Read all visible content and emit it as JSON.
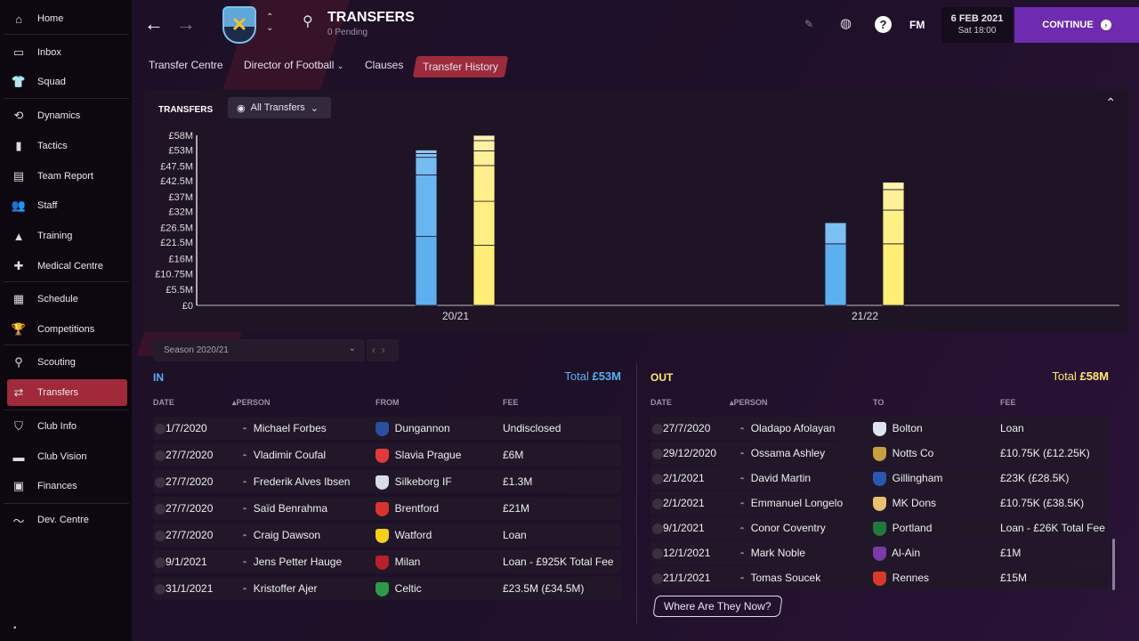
{
  "sidebar": {
    "items": [
      {
        "label": "Home",
        "icon": "home-icon"
      },
      {
        "label": "Inbox",
        "icon": "inbox-icon"
      },
      {
        "label": "Squad",
        "icon": "shirt-icon"
      },
      {
        "label": "Dynamics",
        "icon": "dynamics-icon"
      },
      {
        "label": "Tactics",
        "icon": "tactics-icon"
      },
      {
        "label": "Team Report",
        "icon": "clipboard-icon"
      },
      {
        "label": "Staff",
        "icon": "staff-icon"
      },
      {
        "label": "Training",
        "icon": "training-icon"
      },
      {
        "label": "Medical Centre",
        "icon": "medical-icon"
      },
      {
        "label": "Schedule",
        "icon": "calendar-icon"
      },
      {
        "label": "Competitions",
        "icon": "trophy-icon"
      },
      {
        "label": "Scouting",
        "icon": "search-icon"
      },
      {
        "label": "Transfers",
        "icon": "transfer-icon"
      },
      {
        "label": "Club Info",
        "icon": "shield-icon"
      },
      {
        "label": "Club Vision",
        "icon": "briefcase-icon"
      },
      {
        "label": "Finances",
        "icon": "money-icon"
      },
      {
        "label": "Dev. Centre",
        "icon": "chart-line-icon"
      }
    ],
    "active": "Transfers"
  },
  "header": {
    "title": "TRANSFERS",
    "subtitle": "0 Pending",
    "fm": "FM",
    "date": "6 FEB 2021",
    "time": "Sat 18:00",
    "continue": "CONTINUE",
    "tabs": [
      "Transfer Centre",
      "Director of Football",
      "Clauses",
      "Transfer History"
    ],
    "active_tab": "Transfer History"
  },
  "chart_panel": {
    "title": "TRANSFERS",
    "filter": "All Transfers"
  },
  "chart_data": {
    "type": "bar",
    "stacked": true,
    "categories": [
      "20/21",
      "21/22"
    ],
    "ylim": [
      0,
      58
    ],
    "yticks": [
      "£0",
      "£5.5M",
      "£10.75M",
      "£16M",
      "£21.5M",
      "£26.5M",
      "£32M",
      "£37M",
      "£42.5M",
      "£47.5M",
      "£53M",
      "£58M"
    ],
    "ytick_values": [
      0,
      5.5,
      10.75,
      16,
      21.5,
      26.5,
      32,
      37,
      42.5,
      47.5,
      53,
      58
    ],
    "series": [
      {
        "name": "In",
        "color": "#5ab0f0",
        "segments": [
          [
            23.5,
            21,
            6,
            1.3,
            1.2
          ],
          [
            21,
            7.2
          ]
        ]
      },
      {
        "name": "Out",
        "color": "#ffe876",
        "segments": [
          [
            20.5,
            15,
            12.2,
            5,
            3.5,
            1.8
          ],
          [
            21,
            11.5,
            7,
            2.5
          ]
        ]
      }
    ]
  },
  "season": {
    "label": "Season 2020/21"
  },
  "in": {
    "title": "IN",
    "total_label": "Total",
    "total": "£53M",
    "headers": [
      "DATE",
      "PERSON",
      "FROM",
      "FEE"
    ],
    "rows": [
      {
        "date": "1/7/2020",
        "person": "Michael Forbes",
        "club": "Dungannon",
        "fee": "Undisclosed",
        "color": "#2a4fa0"
      },
      {
        "date": "27/7/2020",
        "person": "Vladimir Coufal",
        "club": "Slavia Prague",
        "fee": "£6M",
        "color": "#e23a3a"
      },
      {
        "date": "27/7/2020",
        "person": "Frederik Alves Ibsen",
        "club": "Silkeborg IF",
        "fee": "£1.3M",
        "color": "#d8dde8"
      },
      {
        "date": "27/7/2020",
        "person": "Saïd Benrahma",
        "club": "Brentford",
        "fee": "£21M",
        "color": "#d8342e"
      },
      {
        "date": "27/7/2020",
        "person": "Craig Dawson",
        "club": "Watford",
        "fee": "Loan",
        "color": "#f4d018"
      },
      {
        "date": "9/1/2021",
        "person": "Jens Petter Hauge",
        "club": "Milan",
        "fee": "Loan - £925K Total Fee",
        "color": "#b8202a"
      },
      {
        "date": "31/1/2021",
        "person": "Kristoffer Ajer",
        "club": "Celtic",
        "fee": "£23.5M (£34.5M)",
        "color": "#2e9a4a"
      }
    ]
  },
  "out": {
    "title": "OUT",
    "total_label": "Total",
    "total": "£58M",
    "headers": [
      "DATE",
      "PERSON",
      "TO",
      "FEE"
    ],
    "rows": [
      {
        "date": "27/7/2020",
        "person": "Oladapo Afolayan",
        "club": "Bolton",
        "fee": "Loan",
        "color": "#dfe4f0"
      },
      {
        "date": "29/12/2020",
        "person": "Ossama Ashley",
        "club": "Notts Co",
        "fee": "£10.75K (£12.25K)",
        "color": "#c8a040"
      },
      {
        "date": "2/1/2021",
        "person": "David Martin",
        "club": "Gillingham",
        "fee": "£23K (£28.5K)",
        "color": "#2a58b0"
      },
      {
        "date": "2/1/2021",
        "person": "Emmanuel Longelo",
        "club": "MK Dons",
        "fee": "£10.75K (£38.5K)",
        "color": "#e8c070"
      },
      {
        "date": "9/1/2021",
        "person": "Conor Coventry",
        "club": "Portland",
        "fee": "Loan - £26K Total Fee",
        "color": "#1e7a3a"
      },
      {
        "date": "12/1/2021",
        "person": "Mark Noble",
        "club": "Al-Ain",
        "fee": "£1M",
        "color": "#7a3aa8"
      },
      {
        "date": "21/1/2021",
        "person": "Tomas Soucek",
        "club": "Rennes",
        "fee": "£15M",
        "color": "#d83a2a"
      }
    ],
    "button": "Where Are They Now?"
  },
  "colors": {
    "in": "#5ab0f0",
    "out": "#ffe876",
    "accent": "#a02a3a",
    "continue": "#6e2bb0"
  }
}
